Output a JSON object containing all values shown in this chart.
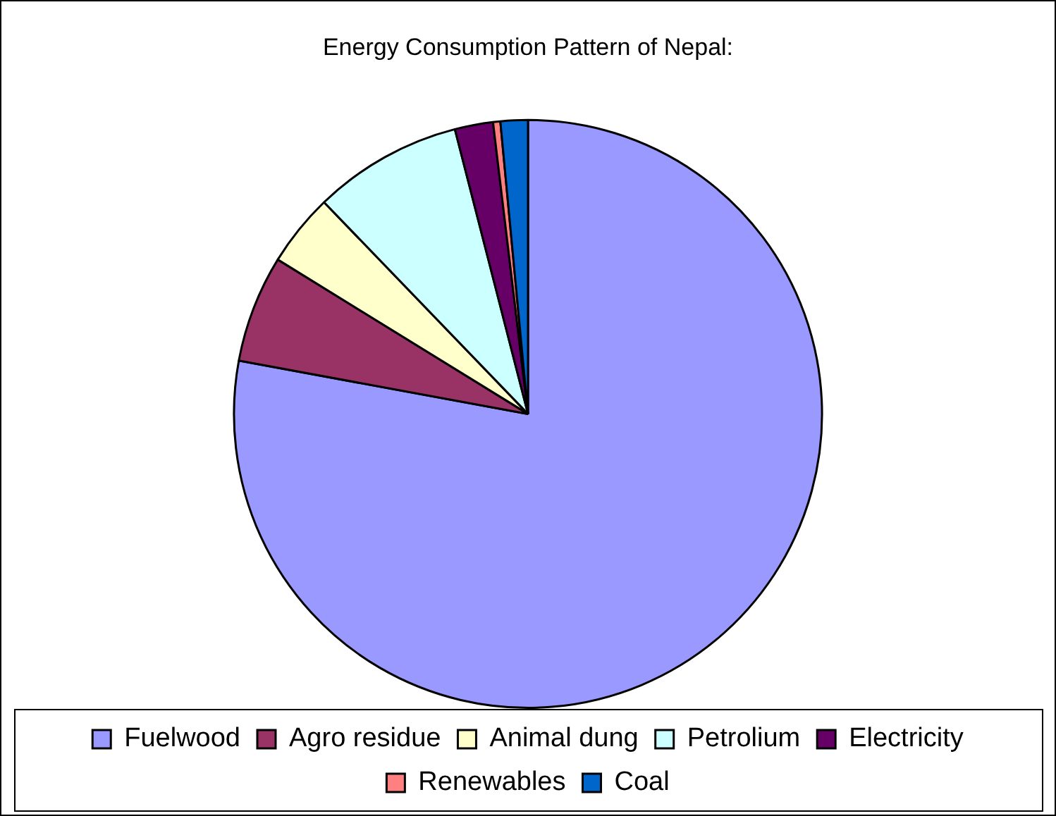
{
  "chart_data": {
    "type": "pie",
    "title": "Energy Consumption Pattern of Nepal:",
    "categories": [
      "Fuelwood",
      "Agro residue",
      "Animal dung",
      "Petrolium",
      "Electricity",
      "Renewables",
      "Coal"
    ],
    "values": [
      77.9,
      5.9,
      4.0,
      8.2,
      2.1,
      0.4,
      1.5
    ],
    "colors": [
      "#9999ff",
      "#993366",
      "#ffffcc",
      "#ccffff",
      "#660066",
      "#ff8080",
      "#0066cc"
    ],
    "legend": "bottom"
  }
}
